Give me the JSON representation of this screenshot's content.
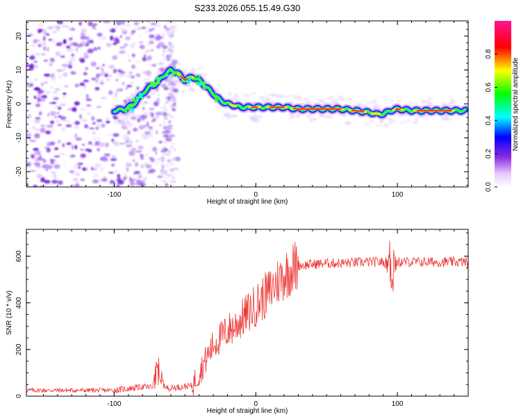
{
  "title": "S233.2026.055.15.49.G30",
  "chart_data": [
    {
      "type": "heatmap",
      "name": "spectrogram",
      "xlabel": "Height of straight line (km)",
      "ylabel": "Frequency (Hz)",
      "xlim": [
        -162,
        150
      ],
      "ylim": [
        -24.5,
        24.5
      ],
      "xticks": [
        -100,
        0,
        100
      ],
      "xtick_labels": [
        "-100",
        "0",
        "100"
      ],
      "yticks": [
        -20,
        -10,
        0,
        10,
        20
      ],
      "ytick_labels": [
        "-20",
        "-10",
        "0",
        "10",
        "20"
      ],
      "ridge": {
        "x": [
          -100,
          -92,
          -86,
          -80,
          -75,
          -70,
          -66,
          -60,
          -55,
          -50,
          -45,
          -40,
          -35,
          -30,
          -25,
          -20,
          -15,
          -10,
          -5,
          0,
          5,
          10,
          20,
          30,
          40,
          50,
          60,
          70,
          80,
          85,
          90,
          95,
          100,
          110,
          120,
          130,
          140,
          148
        ],
        "y": [
          -2,
          -1.5,
          0,
          3,
          5,
          6,
          8,
          10,
          9,
          7,
          8,
          7,
          5,
          3,
          1,
          0,
          -0.5,
          -1,
          -1,
          -1,
          -1,
          -1,
          -1,
          -1.5,
          -1.5,
          -1.5,
          -1.5,
          -2,
          -2.5,
          -3,
          -3,
          -2,
          -1.5,
          -2,
          -2,
          -2,
          -2,
          -2
        ]
      },
      "noise_region_x": [
        -162,
        -55
      ]
    },
    {
      "type": "line",
      "name": "snr",
      "xlabel": "Height of straight line (km)",
      "ylabel": "SNR (10 * v/v)",
      "xlim": [
        -162,
        150
      ],
      "ylim": [
        0,
        715
      ],
      "xticks": [
        -100,
        0,
        100
      ],
      "xtick_labels": [
        "-100",
        "0",
        "100"
      ],
      "yticks": [
        0,
        200,
        400,
        600
      ],
      "ytick_labels": [
        "0",
        "200",
        "400",
        "600"
      ],
      "color": "#ee3333",
      "baseline": {
        "x": [
          -162,
          -100,
          -80,
          -60,
          -45,
          -40,
          -35,
          -30,
          -25,
          -20,
          -15,
          -10,
          -5,
          0,
          5,
          10,
          15,
          20,
          25,
          30,
          40,
          50,
          60,
          80,
          100,
          120,
          150
        ],
        "y": [
          25,
          25,
          40,
          35,
          45,
          100,
          160,
          220,
          250,
          280,
          300,
          330,
          360,
          390,
          420,
          450,
          490,
          520,
          545,
          560,
          565,
          570,
          570,
          575,
          575,
          575,
          575
        ]
      }
    }
  ],
  "colorbar": {
    "label": "Normalized spectral amplitude",
    "ticks": [
      0,
      0.2,
      0.4,
      0.6,
      0.8
    ],
    "tick_labels": [
      "0.0",
      "0.2",
      "0.4",
      "0.6",
      "0.8"
    ],
    "range": [
      0,
      1
    ]
  }
}
